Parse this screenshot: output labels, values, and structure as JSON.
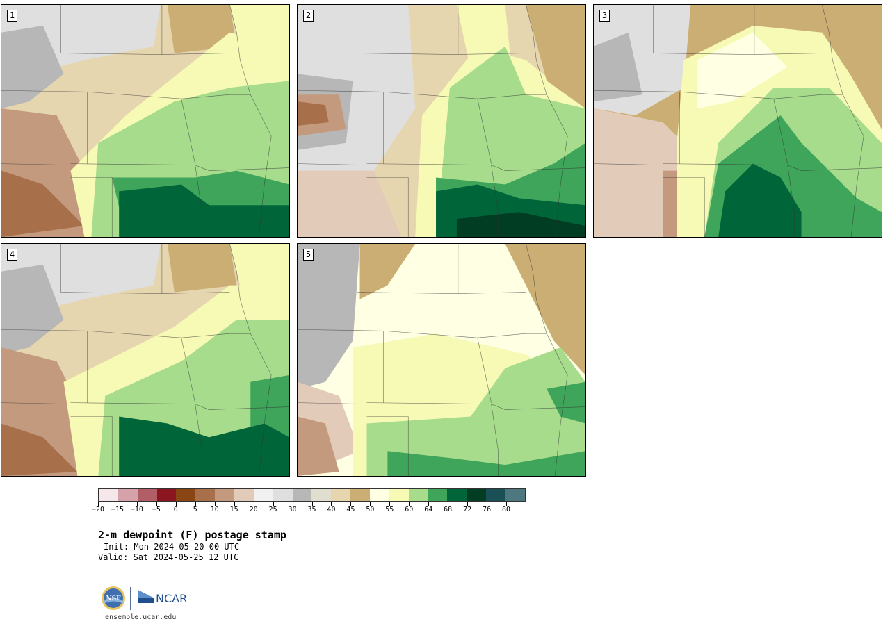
{
  "panels": [
    {
      "label": "1"
    },
    {
      "label": "2"
    },
    {
      "label": "3"
    },
    {
      "label": "4"
    },
    {
      "label": "5"
    }
  ],
  "colorbar": {
    "ticks": [
      "−20",
      "−15",
      "−10",
      "−5",
      "0",
      "5",
      "10",
      "15",
      "20",
      "25",
      "30",
      "35",
      "40",
      "45",
      "50",
      "55",
      "60",
      "64",
      "68",
      "72",
      "76",
      "80"
    ],
    "colors": [
      "#f6e8ea",
      "#d4a2a8",
      "#b25e66",
      "#8c1620",
      "#8a4515",
      "#a86f4b",
      "#c49a7e",
      "#e3cbb9",
      "#f1f1f1",
      "#dfdfdf",
      "#b7b7b7",
      "#e0dfcf",
      "#e6d6b0",
      "#cbae73",
      "#ffffe3",
      "#f6fab4",
      "#a6dc8c",
      "#3fa55a",
      "#00663a",
      "#003d23",
      "#1a4f56",
      "#4d7880"
    ],
    "unit": "F"
  },
  "text": {
    "title": "2-m dewpoint (F) postage stamp",
    "init": "Init: Mon 2024-05-20 00 UTC",
    "valid": "Valid: Sat 2024-05-25 12 UTC",
    "url": "ensemble.ucar.edu"
  },
  "logos": {
    "nsf": "NSF",
    "ncar": "NCAR"
  }
}
